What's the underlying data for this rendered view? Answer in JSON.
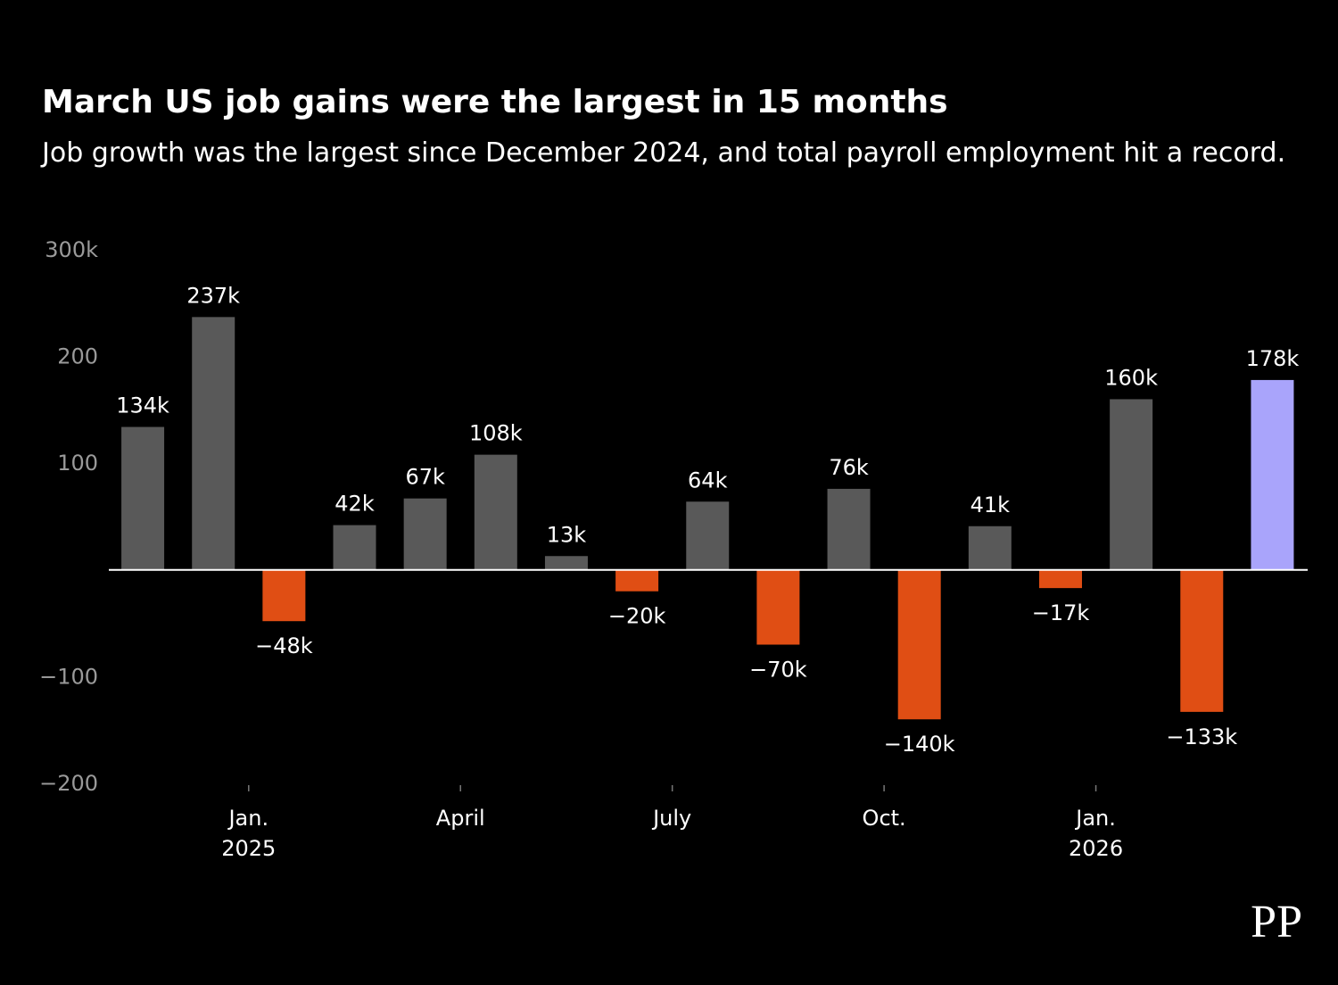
{
  "chart_data": {
    "type": "bar",
    "title": "March US job gains were the largest in 15 months",
    "subtitle": "Job growth was the largest since December 2024, and total payroll employment hit a record.",
    "categories": [
      null,
      null,
      "Jan.\n2025",
      null,
      null,
      "April",
      null,
      null,
      "July",
      null,
      null,
      "Oct.",
      null,
      null,
      "Jan.\n2026",
      null,
      null
    ],
    "values": [
      134,
      237,
      -48,
      42,
      67,
      108,
      13,
      -20,
      64,
      -70,
      76,
      -140,
      41,
      -17,
      160,
      -133,
      178
    ],
    "value_labels": [
      "134k",
      "237k",
      "−48k",
      "42k",
      "67k",
      "108k",
      "13k",
      "−20k",
      "64k",
      "−70k",
      "76k",
      "−140k",
      "41k",
      "−17k",
      "160k",
      "−133k",
      "178k"
    ],
    "colors": [
      "#595959",
      "#595959",
      "#e04e14",
      "#595959",
      "#595959",
      "#595959",
      "#595959",
      "#e04e14",
      "#595959",
      "#e04e14",
      "#595959",
      "#e04e14",
      "#595959",
      "#e04e14",
      "#595959",
      "#e04e14",
      "#a9a4fb"
    ],
    "ylim": [
      -200,
      300
    ],
    "yticks": [
      {
        "value": 300,
        "label": "300k"
      },
      200,
      100,
      {
        "value": -100,
        "label": "−100"
      },
      {
        "value": -200,
        "label": "−200"
      }
    ],
    "grid": false
  },
  "logo": "PP"
}
